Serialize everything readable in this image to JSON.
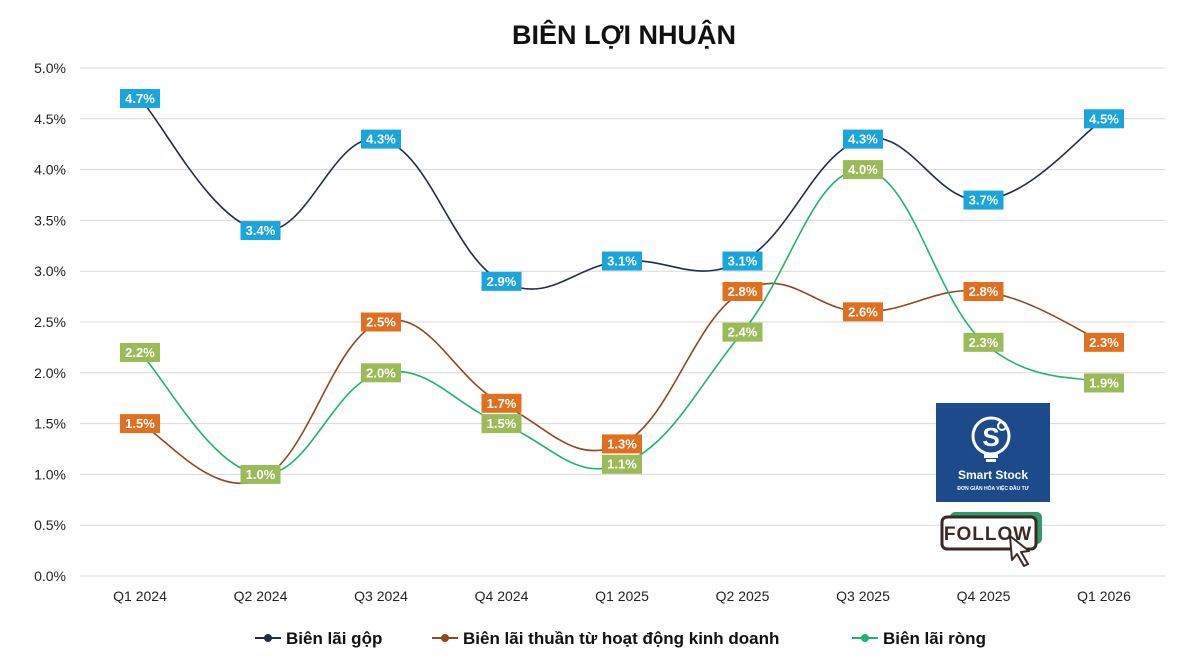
{
  "chart_data": {
    "type": "line",
    "title": "BIÊN LỢI NHUẬN",
    "xlabel": "",
    "ylabel": "",
    "categories": [
      "Q1 2024",
      "Q2 2024",
      "Q3 2024",
      "Q4 2024",
      "Q1 2025",
      "Q2 2025",
      "Q3 2025",
      "Q4 2025",
      "Q1 2026"
    ],
    "ylim": [
      0,
      5.0
    ],
    "yticks": [
      {
        "value": 0.0,
        "label": "0.0%"
      },
      {
        "value": 0.5,
        "label": "0.5%"
      },
      {
        "value": 1.0,
        "label": "1.0%"
      },
      {
        "value": 1.5,
        "label": "1.5%"
      },
      {
        "value": 2.0,
        "label": "2.0%"
      },
      {
        "value": 2.5,
        "label": "2.5%"
      },
      {
        "value": 3.0,
        "label": "3.0%"
      },
      {
        "value": 3.5,
        "label": "3.5%"
      },
      {
        "value": 4.0,
        "label": "4.0%"
      },
      {
        "value": 4.5,
        "label": "4.5%"
      },
      {
        "value": 5.0,
        "label": "5.0%"
      }
    ],
    "grid": true,
    "legend_position": "bottom",
    "series": [
      {
        "name": "Biên lãi gộp",
        "line_color": "#1f2d4e",
        "label_color": "#1aa6dc",
        "values": [
          4.7,
          3.4,
          4.3,
          2.9,
          3.1,
          3.1,
          4.3,
          3.7,
          4.5
        ],
        "labels": [
          "4.7%",
          "3.4%",
          "4.3%",
          "2.9%",
          "3.1%",
          "3.1%",
          "4.3%",
          "3.7%",
          "4.5%"
        ]
      },
      {
        "name": "Biên lãi thuần từ hoạt động kinh doanh",
        "line_color": "#8b4a22",
        "label_color": "#e0701f",
        "values": [
          1.5,
          0.95,
          2.5,
          1.7,
          1.3,
          2.8,
          2.6,
          2.8,
          2.3
        ],
        "labels": [
          "1.5%",
          "",
          "2.5%",
          "1.7%",
          "1.3%",
          "2.8%",
          "2.6%",
          "2.8%",
          "2.3%"
        ]
      },
      {
        "name": "Biên lãi ròng",
        "line_color": "#1fb36b",
        "label_color": "#9bba58",
        "values": [
          2.2,
          1.0,
          2.0,
          1.5,
          1.1,
          2.4,
          4.0,
          2.3,
          1.9
        ],
        "labels": [
          "2.2%",
          "1.0%",
          "2.0%",
          "1.5%",
          "1.1%",
          "2.4%",
          "4.0%",
          "2.3%",
          "1.9%"
        ]
      }
    ]
  },
  "logo": {
    "brand_name": "Smart Stock",
    "tagline": "ĐƠN GIẢN HÓA VIỆC ĐẦU TƯ",
    "background_color": "#1c4a8a",
    "icon": "lightbulb-s-icon"
  },
  "follow_badge": {
    "text": "FOLLOW",
    "icon": "cursor-pointer-icon"
  }
}
